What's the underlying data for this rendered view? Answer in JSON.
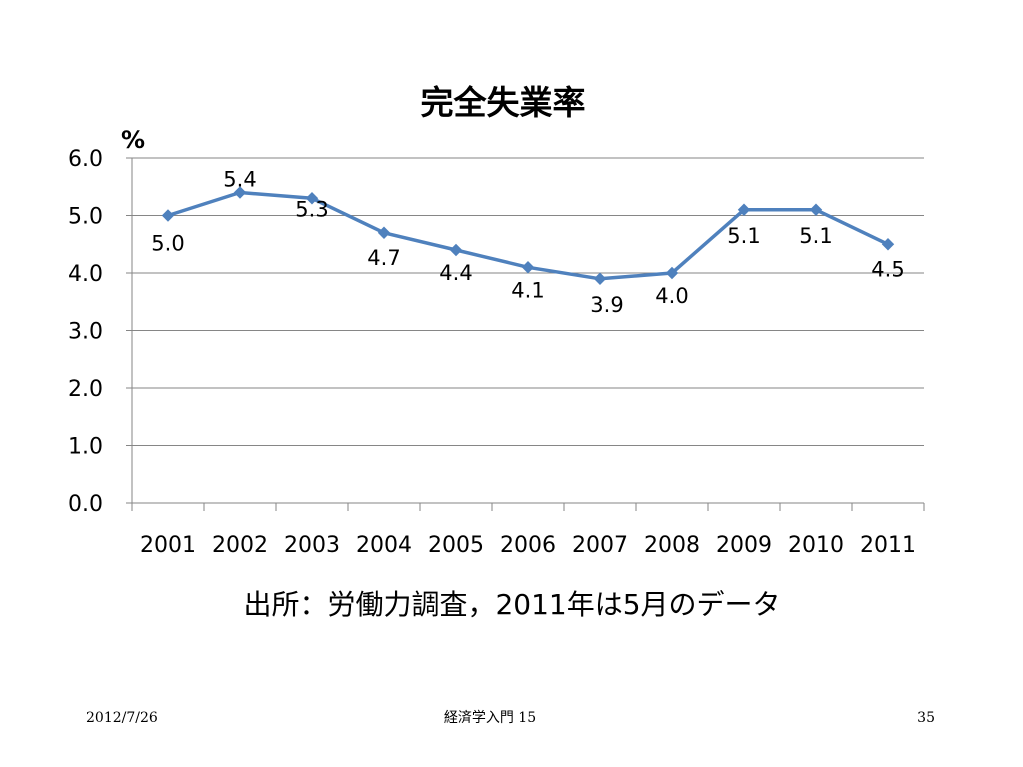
{
  "chart_data": {
    "type": "line",
    "title": "完全失業率",
    "ylabel": "%",
    "xlabel": "",
    "categories": [
      "2001",
      "2002",
      "2003",
      "2004",
      "2005",
      "2006",
      "2007",
      "2008",
      "2009",
      "2010",
      "2011"
    ],
    "values": [
      5.0,
      5.4,
      5.3,
      4.7,
      4.4,
      4.1,
      3.9,
      4.0,
      5.1,
      5.1,
      4.5
    ],
    "data_labels": [
      "5.0",
      "5.4",
      "5.3",
      "4.7",
      "4.4",
      "4.1",
      "3.9",
      "4.0",
      "5.1",
      "5.1",
      "4.5"
    ],
    "ylim": [
      0,
      6
    ],
    "yticks": [
      0,
      1,
      2,
      3,
      4,
      5,
      6
    ],
    "ytick_labels": [
      "0.0",
      "1.0",
      "2.0",
      "3.0",
      "4.0",
      "5.0",
      "6.0"
    ],
    "grid": true,
    "legend": "none",
    "line_color": "#4F81BD",
    "grid_color": "#868686"
  },
  "note": "出所：労働力調査，2011年は5月のデータ",
  "footer": {
    "date": "2012/7/26",
    "center": "経済学入門 15",
    "page": "35"
  }
}
